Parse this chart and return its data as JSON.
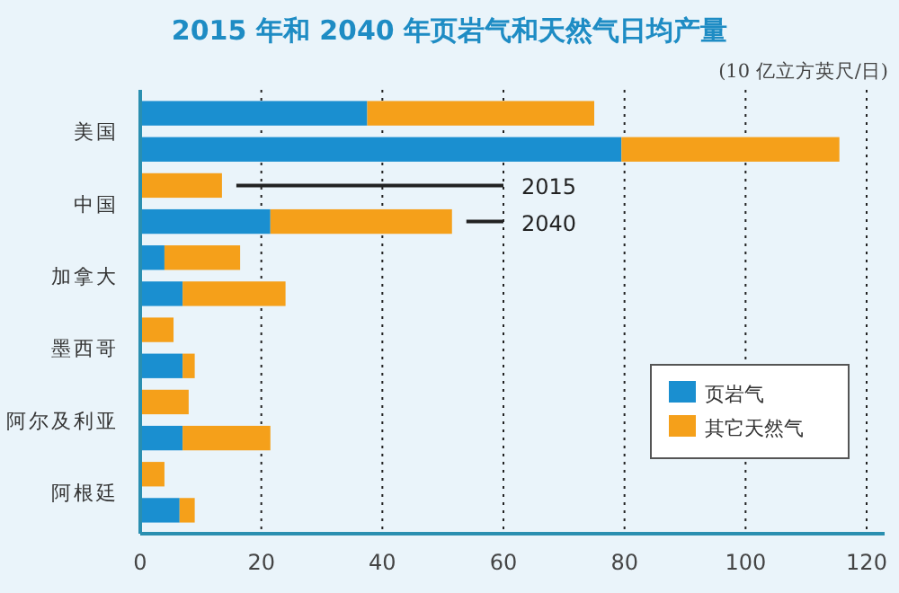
{
  "chart_data": {
    "type": "bar",
    "orientation": "horizontal",
    "stacked": true,
    "title": "2015 年和 2040 年页岩气和天然气日均产量",
    "xlabel": "(10 亿立方英尺/日)",
    "categories": [
      "美国",
      null,
      "中国",
      null,
      "加拿大",
      null,
      "墨西哥",
      null,
      "阿尔及利亚",
      null,
      "阿根廷",
      null
    ],
    "series": [
      {
        "name": "页岩气",
        "color": "#1a8fd0",
        "values": [
          37.5,
          79.5,
          0,
          21.5,
          4,
          7,
          0,
          7,
          0,
          7,
          0,
          6.5
        ]
      },
      {
        "name": "其它天然气",
        "color": "#f5a01a",
        "values": [
          37.5,
          36,
          13.5,
          30,
          12.5,
          17,
          5.5,
          2,
          8,
          14.5,
          4,
          2.5
        ]
      }
    ],
    "annotations": [
      "2015",
      "2040"
    ],
    "xlim": [
      0,
      120
    ],
    "xticks": [
      0,
      20,
      40,
      60,
      80,
      100,
      120
    ],
    "grid": "x",
    "legend": "bottom right"
  }
}
